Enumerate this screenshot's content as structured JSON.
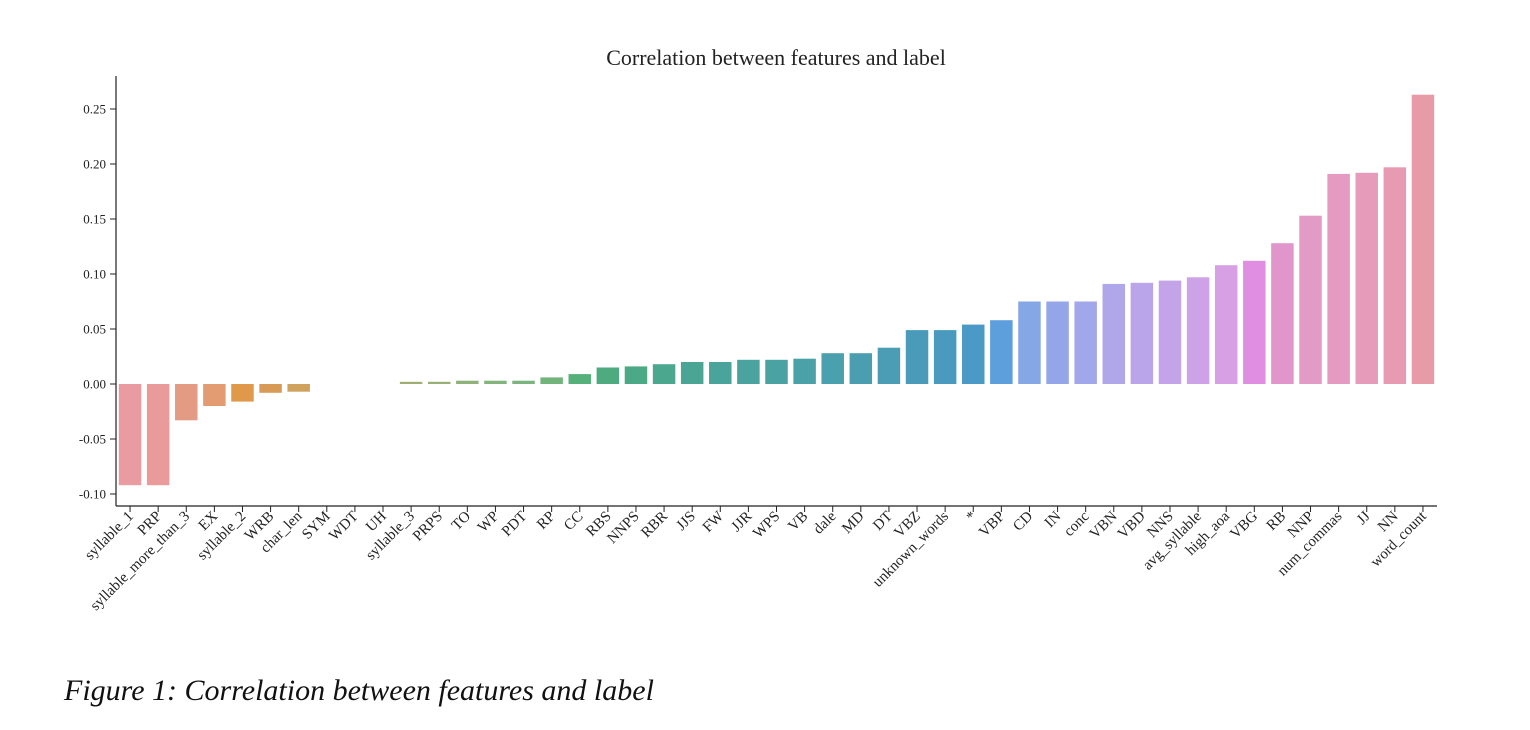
{
  "caption": "Figure 1: Correlation between features and label",
  "chart_data": {
    "type": "bar",
    "title": "Correlation between features and label",
    "xlabel": "",
    "ylabel": "",
    "ylim": [
      -0.11,
      0.28
    ],
    "yticks": [
      "0.25",
      "0.20",
      "0.15",
      "0.10",
      "0.05",
      "0.00",
      "-0.05",
      "-0.10"
    ],
    "ytick_values": [
      0.25,
      0.2,
      0.15,
      0.1,
      0.05,
      0.0,
      -0.05,
      -0.1
    ],
    "grid": false,
    "legend": "none",
    "categories": [
      "syllable_1",
      "PRP",
      "syllable_more_than_3",
      "EX",
      "syllable_2",
      "WRB",
      "char_len",
      "SYM",
      "WDT",
      "UH",
      "syllable_3",
      "PRPS",
      "TO",
      "WP",
      "PDT",
      "RP",
      "CC",
      "RBS",
      "NNPS",
      "RBR",
      "JJS",
      "FW",
      "JJR",
      "WPS",
      "VB",
      "dale",
      "MD",
      "DT",
      "VBZ",
      "unknown_words",
      "*",
      "VBP",
      "CD",
      "IN",
      "conc",
      "VBN",
      "VBD",
      "NNS",
      "avg_syllable",
      "high_aoa",
      "VBG",
      "RB",
      "NNP",
      "num_commas",
      "JJ",
      "NN",
      "word_count"
    ],
    "values": [
      -0.092,
      -0.092,
      -0.033,
      -0.02,
      -0.016,
      -0.008,
      -0.007,
      0.0,
      0.0,
      0.0,
      0.002,
      0.002,
      0.003,
      0.003,
      0.003,
      0.006,
      0.009,
      0.015,
      0.016,
      0.018,
      0.02,
      0.02,
      0.022,
      0.022,
      0.023,
      0.028,
      0.028,
      0.033,
      0.049,
      0.049,
      0.054,
      0.058,
      0.075,
      0.075,
      0.075,
      0.091,
      0.092,
      0.094,
      0.097,
      0.108,
      0.112,
      0.128,
      0.153,
      0.191,
      0.192,
      0.197,
      0.263
    ],
    "colors": [
      "#e99ba2",
      "#e99a9a",
      "#e49b84",
      "#e39b72",
      "#e0994a",
      "#d89b57",
      "#cfa25d",
      "#c4a766",
      "#b8aa6a",
      "#abac6e",
      "#9fae73",
      "#96b075",
      "#8eb27a",
      "#83b47e",
      "#7bb47f",
      "#72b47c",
      "#55b07a",
      "#4dab7f",
      "#4ca986",
      "#4ba78e",
      "#4aa594",
      "#4aa49b",
      "#4aa39f",
      "#4aa2a3",
      "#4aa1a7",
      "#4aa0ac",
      "#4a9eb0",
      "#4a9db4",
      "#4a9bba",
      "#4a9ac0",
      "#4a99c6",
      "#5d9fdc",
      "#86a7e6",
      "#94a6e8",
      "#a2a6ea",
      "#b0a6ea",
      "#bba5ea",
      "#c4a4e8",
      "#cea2e6",
      "#d79fe4",
      "#e08ee2",
      "#e096ca",
      "#e29bc5",
      "#e59ac1",
      "#e59bb9",
      "#e69bb2",
      "#e69ba6"
    ]
  }
}
